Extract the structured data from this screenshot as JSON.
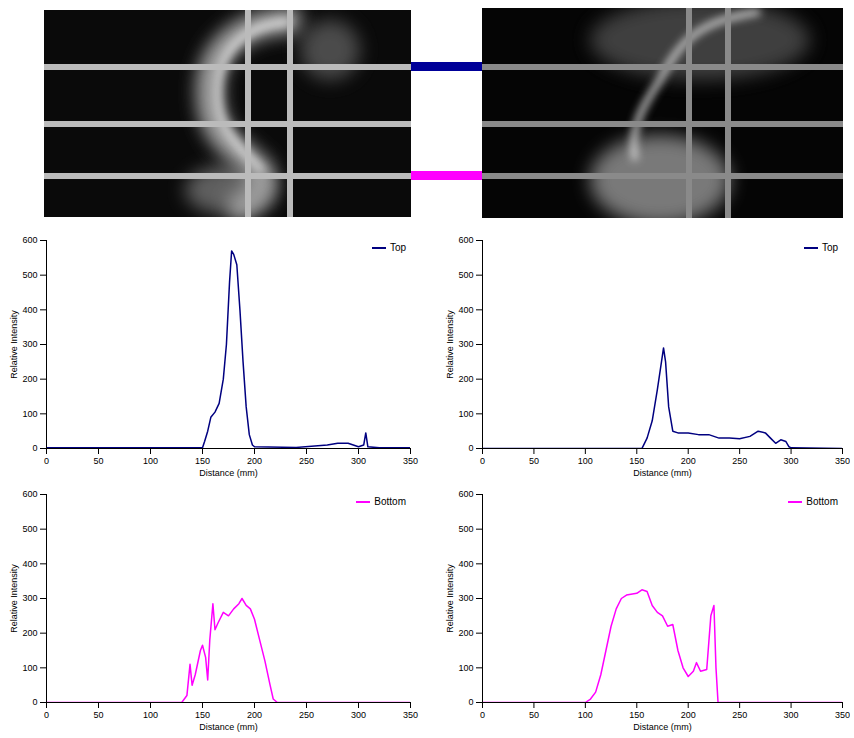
{
  "chart_data": [
    {
      "type": "line",
      "xlabel": "Distance (mm)",
      "ylabel": "Relative Intensity",
      "xlim": [
        0,
        350
      ],
      "xticks": [
        0,
        50,
        100,
        150,
        200,
        250,
        300,
        350
      ],
      "ylim": [
        0,
        600
      ],
      "yticks": [
        0,
        100,
        200,
        300,
        400,
        500,
        600
      ],
      "legend": "top-right",
      "x": [
        0,
        50,
        100,
        150,
        152,
        155,
        158,
        162,
        166,
        170,
        173,
        176,
        178,
        180,
        183,
        186,
        189,
        192,
        195,
        198,
        200,
        240,
        270,
        280,
        290,
        295,
        300,
        305,
        307,
        309,
        320,
        350
      ],
      "series": [
        {
          "name": "Top",
          "color": "#000080",
          "values": [
            2,
            2,
            2,
            2,
            20,
            50,
            90,
            105,
            130,
            200,
            300,
            480,
            570,
            560,
            530,
            400,
            250,
            120,
            40,
            10,
            5,
            3,
            10,
            15,
            15,
            10,
            5,
            10,
            45,
            5,
            2,
            2
          ]
        }
      ]
    },
    {
      "type": "line",
      "xlabel": "Distance (mm)",
      "ylabel": "Relative Intensity",
      "xlim": [
        0,
        350
      ],
      "xticks": [
        0,
        50,
        100,
        150,
        200,
        250,
        300,
        350
      ],
      "ylim": [
        0,
        600
      ],
      "yticks": [
        0,
        100,
        200,
        300,
        400,
        500,
        600
      ],
      "legend": "top-right",
      "x": [
        0,
        155,
        160,
        165,
        170,
        174,
        176,
        178,
        181,
        185,
        190,
        200,
        210,
        220,
        230,
        240,
        250,
        260,
        268,
        275,
        280,
        285,
        290,
        295,
        298,
        300,
        350
      ],
      "series": [
        {
          "name": "Top",
          "color": "#000080",
          "values": [
            0,
            0,
            30,
            80,
            170,
            250,
            290,
            250,
            120,
            50,
            45,
            45,
            40,
            40,
            30,
            30,
            28,
            35,
            50,
            45,
            30,
            15,
            25,
            20,
            5,
            2,
            0
          ]
        }
      ]
    },
    {
      "type": "line",
      "xlabel": "Distance (mm)",
      "ylabel": "Relative Intensity",
      "xlim": [
        0,
        350
      ],
      "xticks": [
        0,
        50,
        100,
        150,
        200,
        250,
        300,
        350
      ],
      "ylim": [
        0,
        600
      ],
      "yticks": [
        0,
        100,
        200,
        300,
        400,
        500,
        600
      ],
      "legend": "top-right",
      "x": [
        0,
        130,
        135,
        138,
        140,
        143,
        148,
        150,
        153,
        155,
        157,
        160,
        162,
        165,
        170,
        175,
        180,
        185,
        188,
        192,
        196,
        200,
        205,
        210,
        215,
        218,
        222,
        350
      ],
      "series": [
        {
          "name": "Bottom",
          "color": "#ff00ff",
          "values": [
            0,
            0,
            20,
            110,
            50,
            80,
            150,
            165,
            130,
            65,
            180,
            285,
            210,
            230,
            260,
            250,
            270,
            285,
            300,
            280,
            270,
            240,
            180,
            120,
            50,
            10,
            0,
            0
          ]
        }
      ]
    },
    {
      "type": "line",
      "xlabel": "Distance (mm)",
      "ylabel": "Relative Intensity",
      "xlim": [
        0,
        350
      ],
      "xticks": [
        0,
        50,
        100,
        150,
        200,
        250,
        300,
        350
      ],
      "ylim": [
        0,
        600
      ],
      "yticks": [
        0,
        100,
        200,
        300,
        400,
        500,
        600
      ],
      "legend": "top-right",
      "x": [
        0,
        100,
        105,
        110,
        115,
        120,
        125,
        130,
        135,
        140,
        150,
        155,
        160,
        165,
        170,
        175,
        180,
        185,
        190,
        195,
        200,
        205,
        208,
        212,
        218,
        222,
        225,
        227,
        229,
        350
      ],
      "series": [
        {
          "name": "Bottom",
          "color": "#ff00ff",
          "values": [
            0,
            0,
            10,
            30,
            80,
            150,
            220,
            270,
            300,
            310,
            315,
            325,
            320,
            280,
            260,
            250,
            220,
            225,
            150,
            100,
            75,
            90,
            115,
            90,
            95,
            250,
            280,
            100,
            0,
            0
          ]
        }
      ]
    }
  ]
}
